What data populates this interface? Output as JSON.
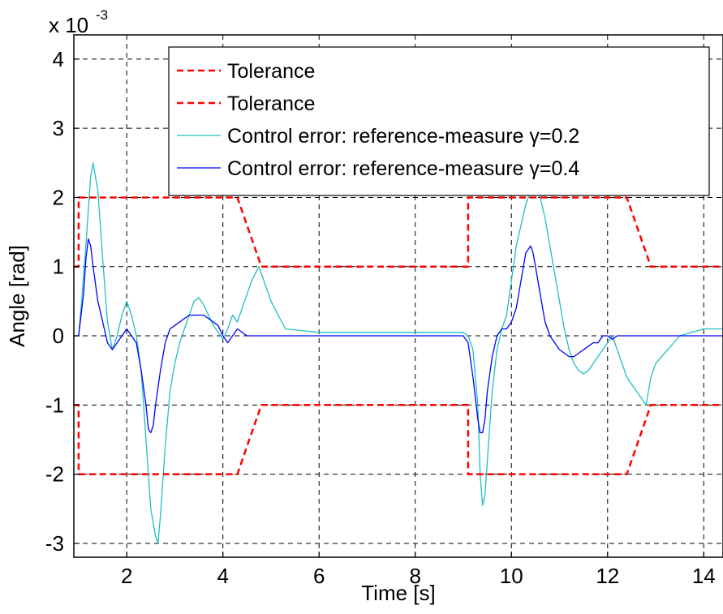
{
  "chart_data": {
    "type": "line",
    "title": "",
    "xlabel": "Time [s]",
    "ylabel": "Angle  [rad]",
    "y_multiplier_label": "x 10",
    "y_multiplier_exponent": "-3",
    "xlim": [
      0.9,
      14.4
    ],
    "ylim": [
      -3.2,
      4.35
    ],
    "xticks": [
      2,
      4,
      6,
      8,
      10,
      12,
      14
    ],
    "yticks": [
      -3,
      -2,
      -1,
      0,
      1,
      2,
      3,
      4
    ],
    "grid": true,
    "legend_position": "top-right",
    "series": [
      {
        "name": "Tolerance",
        "color": "#ff0000",
        "style": "dashed",
        "x": [
          0.9,
          1.0,
          1.0,
          4.3,
          4.8,
          9.1,
          9.1,
          12.4,
          12.9,
          14.4
        ],
        "y": [
          1.0,
          1.0,
          2.0,
          2.0,
          1.0,
          1.0,
          2.0,
          2.0,
          1.0,
          1.0
        ]
      },
      {
        "name": "Tolerance",
        "color": "#ff0000",
        "style": "dashed",
        "x": [
          0.9,
          1.0,
          1.0,
          4.3,
          4.8,
          9.1,
          9.1,
          12.4,
          12.9,
          14.4
        ],
        "y": [
          -1.0,
          -1.0,
          -2.0,
          -2.0,
          -1.0,
          -1.0,
          -2.0,
          -2.0,
          -1.0,
          -1.0
        ]
      },
      {
        "name": "Control error: reference-measure γ=0.2",
        "color": "#1fbfbf",
        "style": "solid",
        "x": [
          0.9,
          1.0,
          1.05,
          1.15,
          1.25,
          1.3,
          1.4,
          1.5,
          1.6,
          1.7,
          1.8,
          1.9,
          2.0,
          2.1,
          2.2,
          2.3,
          2.4,
          2.5,
          2.6,
          2.65,
          2.7,
          2.8,
          2.9,
          3.0,
          3.1,
          3.2,
          3.3,
          3.4,
          3.5,
          3.6,
          3.7,
          3.8,
          3.9,
          4.0,
          4.1,
          4.2,
          4.3,
          4.6,
          4.75,
          5.0,
          5.3,
          6.0,
          7.0,
          8.0,
          9.0,
          9.1,
          9.2,
          9.3,
          9.35,
          9.4,
          9.45,
          9.5,
          9.6,
          9.7,
          9.8,
          9.9,
          10.0,
          10.1,
          10.2,
          10.3,
          10.4,
          10.5,
          10.6,
          10.7,
          10.8,
          10.9,
          11.0,
          11.1,
          11.2,
          11.3,
          11.4,
          11.5,
          11.6,
          11.7,
          11.8,
          11.9,
          12.0,
          12.1,
          12.2,
          12.3,
          12.4,
          12.5,
          12.6,
          12.7,
          12.8,
          12.9,
          13.0,
          13.5,
          14.0,
          14.4
        ],
        "y": [
          0,
          0,
          0.4,
          1.3,
          2.3,
          2.5,
          2.1,
          1.1,
          0.2,
          -0.2,
          0,
          0.3,
          0.5,
          0.3,
          0,
          -0.5,
          -1.5,
          -2.5,
          -2.9,
          -3.0,
          -2.6,
          -1.6,
          -0.8,
          -0.4,
          -0.1,
          0.1,
          0.3,
          0.5,
          0.55,
          0.45,
          0.3,
          0.15,
          0.05,
          -0.05,
          0.1,
          0.3,
          0.2,
          0.8,
          1.0,
          0.5,
          0.1,
          0.05,
          0.05,
          0.05,
          0.05,
          0.0,
          -0.2,
          -1.0,
          -2.0,
          -2.45,
          -2.3,
          -1.8,
          -0.8,
          -0.2,
          0.1,
          0.3,
          0.8,
          1.3,
          1.6,
          1.9,
          2.1,
          2.15,
          2.0,
          1.7,
          1.3,
          0.9,
          0.5,
          0.1,
          -0.2,
          -0.4,
          -0.5,
          -0.55,
          -0.5,
          -0.4,
          -0.3,
          -0.2,
          -0.1,
          0,
          -0.2,
          -0.4,
          -0.6,
          -0.7,
          -0.8,
          -0.9,
          -1.0,
          -0.6,
          -0.4,
          0,
          0.1,
          0.1
        ]
      },
      {
        "name": "Control error: reference-measure γ=0.4",
        "color": "#0000ff",
        "style": "solid",
        "x": [
          0.9,
          1.0,
          1.05,
          1.1,
          1.15,
          1.2,
          1.25,
          1.3,
          1.4,
          1.5,
          1.6,
          1.7,
          1.8,
          1.9,
          2.0,
          2.1,
          2.2,
          2.3,
          2.4,
          2.45,
          2.5,
          2.55,
          2.6,
          2.7,
          2.8,
          2.9,
          3.0,
          3.1,
          3.2,
          3.3,
          3.4,
          3.5,
          3.6,
          3.7,
          3.8,
          3.9,
          4.0,
          4.1,
          4.2,
          4.3,
          4.5,
          5.0,
          6.0,
          7.0,
          8.0,
          9.0,
          9.1,
          9.2,
          9.3,
          9.35,
          9.4,
          9.45,
          9.5,
          9.6,
          9.7,
          9.8,
          9.9,
          10.0,
          10.1,
          10.2,
          10.3,
          10.4,
          10.45,
          10.5,
          10.6,
          10.7,
          10.8,
          10.9,
          11.0,
          11.1,
          11.2,
          11.3,
          11.4,
          11.5,
          11.6,
          11.7,
          11.8,
          11.9,
          12.0,
          12.1,
          12.2,
          12.3,
          12.5,
          13.0,
          13.5,
          14.0,
          14.4
        ],
        "y": [
          0,
          0,
          0.3,
          0.6,
          1.1,
          1.4,
          1.3,
          1.0,
          0.5,
          0.2,
          -0.1,
          -0.2,
          -0.1,
          0,
          0.1,
          0.0,
          -0.1,
          -0.5,
          -1.0,
          -1.35,
          -1.4,
          -1.3,
          -1.0,
          -0.5,
          -0.1,
          0.1,
          0.15,
          0.2,
          0.25,
          0.3,
          0.3,
          0.3,
          0.3,
          0.25,
          0.2,
          0.15,
          0.0,
          -0.1,
          0.0,
          0.1,
          0.0,
          0.0,
          0.0,
          0.0,
          0.0,
          0.0,
          -0.1,
          -0.6,
          -1.2,
          -1.4,
          -1.4,
          -1.2,
          -0.8,
          -0.3,
          0.0,
          0.1,
          0.1,
          0.2,
          0.4,
          0.8,
          1.2,
          1.3,
          1.2,
          1.0,
          0.6,
          0.2,
          0.0,
          -0.1,
          -0.2,
          -0.25,
          -0.3,
          -0.3,
          -0.25,
          -0.2,
          -0.15,
          -0.1,
          -0.1,
          0.0,
          0.0,
          -0.05,
          0.0,
          0.0,
          0.0,
          0.0,
          0.0,
          0.0,
          0.0
        ]
      }
    ]
  }
}
